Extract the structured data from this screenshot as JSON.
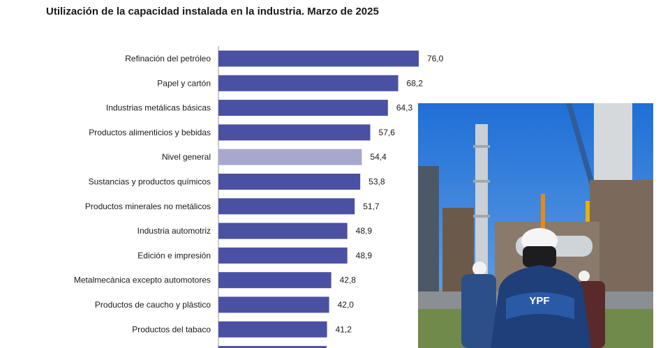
{
  "chart_data": {
    "type": "bar",
    "orientation": "horizontal",
    "title": "Utilización de la capacidad instalada en la industria. Marzo de 2025",
    "categories": [
      "Refinación del petróleo",
      "Papel y cartón",
      "Industrias metálicas básicas",
      "Productos alimenticios y bebidas",
      "Nivel general",
      "Sustancias y productos químicos",
      "Productos minerales no metálicos",
      "Industria automotriz",
      "Edición e impresión",
      "Metalmecánica excepto automotores",
      "Productos de caucho y plástico",
      "Productos del tabaco"
    ],
    "values": [
      76.0,
      68.2,
      64.3,
      57.6,
      54.4,
      53.8,
      51.7,
      48.9,
      48.9,
      42.8,
      42.0,
      41.2
    ],
    "value_labels": [
      "76,0",
      "68,2",
      "64,3",
      "57,6",
      "54,4",
      "53,8",
      "51,7",
      "48,9",
      "48,9",
      "42,8",
      "42,0",
      "41,2"
    ],
    "highlight_category": "Nivel general",
    "xlim": [
      0,
      80
    ],
    "colors": {
      "bar": "#4a51a3",
      "highlight": "#a8a8cf"
    },
    "grid": false,
    "legend": "none"
  },
  "photo": {
    "logo_text": "YPF"
  }
}
